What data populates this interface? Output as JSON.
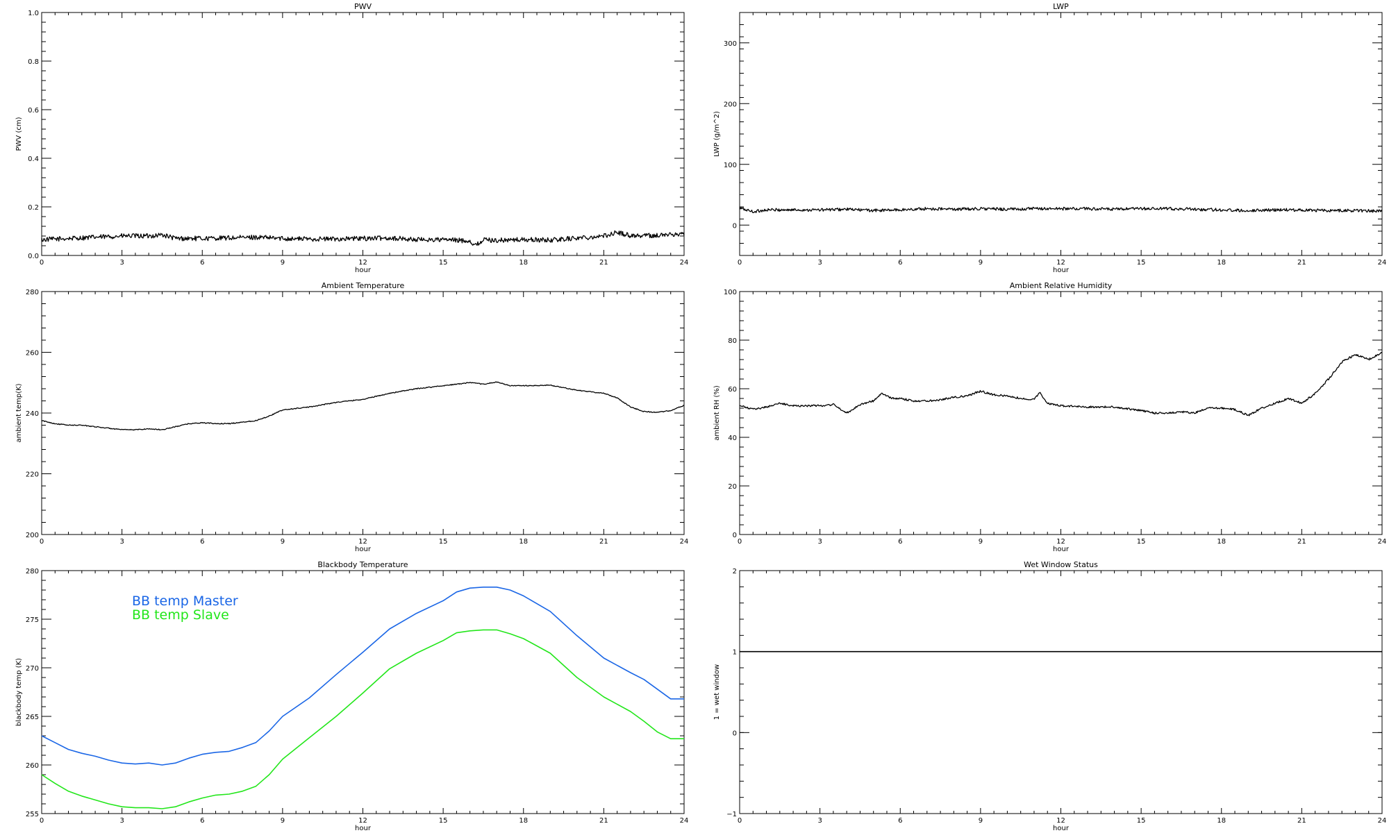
{
  "chart_data": [
    {
      "type": "line",
      "title": "PWV",
      "xlabel": "hour",
      "ylabel": "PWV (cm)",
      "xlim": [
        0,
        24
      ],
      "ylim": [
        0,
        1.0
      ],
      "xticks": [
        0,
        3,
        6,
        9,
        12,
        15,
        18,
        21,
        24
      ],
      "yticks": [
        0.0,
        0.2,
        0.4,
        0.6,
        0.8,
        1.0
      ],
      "ytick_labels": [
        "0.0",
        "0.2",
        "0.4",
        "0.6",
        "0.8",
        "1.0"
      ],
      "grid": false,
      "series": [
        {
          "color": "#000000",
          "noise": 0.01,
          "x": [
            0,
            1,
            2,
            3,
            4,
            4.5,
            5,
            6,
            7,
            8,
            9,
            10,
            11,
            12,
            13,
            14,
            15,
            16,
            16.2,
            16.5,
            17,
            18,
            19,
            20,
            21,
            21.5,
            22,
            23,
            24
          ],
          "values": [
            0.065,
            0.07,
            0.075,
            0.08,
            0.08,
            0.085,
            0.07,
            0.07,
            0.072,
            0.075,
            0.07,
            0.068,
            0.068,
            0.07,
            0.072,
            0.065,
            0.065,
            0.06,
            0.04,
            0.065,
            0.062,
            0.065,
            0.063,
            0.072,
            0.08,
            0.095,
            0.082,
            0.082,
            0.09
          ]
        }
      ]
    },
    {
      "type": "line",
      "title": "LWP",
      "xlabel": "hour",
      "ylabel": "LWP (g/m^2)",
      "xlim": [
        0,
        24
      ],
      "ylim": [
        -50,
        350
      ],
      "xticks": [
        0,
        3,
        6,
        9,
        12,
        15,
        18,
        21,
        24
      ],
      "yticks": [
        0,
        100,
        200,
        300
      ],
      "ytick_labels": [
        "0",
        "100",
        "200",
        "300"
      ],
      "grid": false,
      "series": [
        {
          "color": "#000000",
          "noise": 2.5,
          "x": [
            0,
            0.5,
            1,
            2,
            3,
            4,
            5,
            6,
            7,
            8,
            9,
            10,
            11,
            12,
            13,
            14,
            15,
            16,
            17,
            18,
            19,
            20,
            21,
            22,
            23,
            24
          ],
          "values": [
            28,
            22,
            25,
            25,
            25,
            26,
            24,
            25,
            27,
            26,
            27,
            26,
            27,
            27,
            27,
            26,
            27,
            27,
            26,
            25,
            24,
            25,
            25,
            24,
            24,
            23
          ]
        }
      ]
    },
    {
      "type": "line",
      "title": "Ambient Temperature",
      "xlabel": "hour",
      "ylabel": "ambient temp(K)",
      "xlim": [
        0,
        24
      ],
      "ylim": [
        200,
        280
      ],
      "xticks": [
        0,
        3,
        6,
        9,
        12,
        15,
        18,
        21,
        24
      ],
      "yticks": [
        200,
        220,
        240,
        260,
        280
      ],
      "ytick_labels": [
        "200",
        "220",
        "240",
        "260",
        "280"
      ],
      "grid": false,
      "series": [
        {
          "color": "#000000",
          "noise": 0.15,
          "x": [
            0,
            0.5,
            1,
            1.5,
            2,
            2.5,
            3,
            3.5,
            4,
            4.5,
            5,
            5.5,
            6,
            6.5,
            7,
            7.5,
            8,
            8.5,
            9,
            10,
            11,
            12,
            13,
            14,
            15,
            15.5,
            16,
            16.5,
            17,
            17.5,
            18,
            18.5,
            19,
            20,
            21,
            21.5,
            22,
            22.5,
            23,
            23.5,
            24
          ],
          "values": [
            237.5,
            236.5,
            236,
            236,
            235.5,
            235,
            234.5,
            234.5,
            234.8,
            234.5,
            235.5,
            236.5,
            236.8,
            236.5,
            236.5,
            237,
            237.5,
            239,
            241,
            242,
            243.5,
            244.5,
            246.5,
            248,
            249,
            249.5,
            250,
            249.5,
            250.2,
            249,
            249,
            249,
            249.2,
            247.5,
            246.5,
            245,
            242,
            240.5,
            240.2,
            240.8,
            242.5
          ]
        }
      ]
    },
    {
      "type": "line",
      "title": "Ambient Relative Humidity",
      "xlabel": "hour",
      "ylabel": "ambient RH (%)",
      "xlim": [
        0,
        24
      ],
      "ylim": [
        0,
        100
      ],
      "xticks": [
        0,
        3,
        6,
        9,
        12,
        15,
        18,
        21,
        24
      ],
      "yticks": [
        0,
        20,
        40,
        60,
        80,
        100
      ],
      "ytick_labels": [
        "0",
        "20",
        "40",
        "60",
        "80",
        "100"
      ],
      "grid": false,
      "series": [
        {
          "color": "#000000",
          "noise": 0.4,
          "x": [
            0,
            0.5,
            1,
            1.5,
            2,
            3,
            3.5,
            4,
            4.5,
            5,
            5.3,
            5.7,
            6,
            6.5,
            7,
            7.5,
            8,
            8.5,
            9,
            9.5,
            10,
            10.5,
            11,
            11.2,
            11.5,
            12,
            13,
            14,
            15,
            15.5,
            16,
            16.5,
            17,
            17.5,
            18,
            18.5,
            19,
            19.5,
            20,
            20.5,
            21,
            21.5,
            22,
            22.5,
            23,
            23.5,
            24
          ],
          "values": [
            53,
            51.5,
            52.5,
            54,
            53,
            53,
            53.5,
            50,
            53.5,
            55,
            58,
            56,
            56,
            55,
            55,
            55.5,
            56.5,
            57,
            59,
            57.5,
            57,
            56,
            55.5,
            58.5,
            54,
            53,
            52.5,
            52.5,
            51,
            50,
            50,
            50.5,
            50,
            52,
            52,
            51.5,
            49,
            52,
            54,
            56,
            54,
            58,
            64,
            71,
            74,
            72,
            75
          ]
        }
      ]
    },
    {
      "type": "line",
      "title": "Blackbody Temperature",
      "xlabel": "hour",
      "ylabel": "blackbody temp (K)",
      "xlim": [
        0,
        24
      ],
      "ylim": [
        255,
        280
      ],
      "xticks": [
        0,
        3,
        6,
        9,
        12,
        15,
        18,
        21,
        24
      ],
      "yticks": [
        255,
        260,
        265,
        270,
        275,
        280
      ],
      "ytick_labels": [
        "255",
        "260",
        "265",
        "270",
        "275",
        "280"
      ],
      "grid": false,
      "legend_placement": "top-left",
      "series": [
        {
          "name": "BB temp Master",
          "color": "#1a66e6",
          "noise": 0,
          "x": [
            0,
            0.5,
            1,
            1.5,
            2,
            2.5,
            3,
            3.5,
            4,
            4.5,
            5,
            5.5,
            6,
            6.5,
            7,
            7.5,
            8,
            8.5,
            9,
            10,
            11,
            12,
            13,
            14,
            15,
            15.5,
            16,
            16.5,
            17,
            17.5,
            18,
            19,
            20,
            21,
            22,
            22.5,
            23,
            23.5,
            24
          ],
          "values": [
            263,
            262.3,
            261.6,
            261.2,
            260.9,
            260.5,
            260.2,
            260.1,
            260.2,
            260.0,
            260.2,
            260.7,
            261.1,
            261.3,
            261.4,
            261.8,
            262.3,
            263.5,
            265.0,
            266.9,
            269.3,
            271.6,
            274.0,
            275.6,
            276.9,
            277.8,
            278.2,
            278.3,
            278.3,
            278.0,
            277.4,
            275.8,
            273.3,
            271.0,
            269.5,
            268.8,
            267.8,
            266.8,
            266.8
          ]
        },
        {
          "name": "BB temp Slave",
          "color": "#22e61a",
          "noise": 0,
          "x": [
            0,
            0.5,
            1,
            1.5,
            2,
            2.5,
            3,
            3.5,
            4,
            4.5,
            5,
            5.5,
            6,
            6.5,
            7,
            7.5,
            8,
            8.5,
            9,
            10,
            11,
            12,
            13,
            14,
            15,
            15.5,
            16,
            16.5,
            17,
            17.5,
            18,
            19,
            20,
            21,
            22,
            22.5,
            23,
            23.5,
            24
          ],
          "values": [
            259,
            258.1,
            257.3,
            256.8,
            256.4,
            256.0,
            255.7,
            255.6,
            255.6,
            255.5,
            255.7,
            256.2,
            256.6,
            256.9,
            257.0,
            257.3,
            257.8,
            259.0,
            260.6,
            262.8,
            265.0,
            267.4,
            269.9,
            271.5,
            272.8,
            273.6,
            273.8,
            273.9,
            273.9,
            273.5,
            273.0,
            271.5,
            269.0,
            267.0,
            265.5,
            264.5,
            263.4,
            262.7,
            262.7
          ]
        }
      ]
    },
    {
      "type": "line",
      "title": "Wet Window Status",
      "xlabel": "hour",
      "ylabel": "1 = wet window",
      "xlim": [
        0,
        24
      ],
      "ylim": [
        -1,
        2
      ],
      "xticks": [
        0,
        3,
        6,
        9,
        12,
        15,
        18,
        21,
        24
      ],
      "yticks": [
        -1,
        0,
        1,
        2
      ],
      "ytick_labels": [
        "−1",
        "0",
        "1",
        "2"
      ],
      "grid": false,
      "series": [
        {
          "color": "#000000",
          "noise": 0,
          "x": [
            0,
            24
          ],
          "values": [
            1,
            1
          ]
        }
      ]
    }
  ]
}
